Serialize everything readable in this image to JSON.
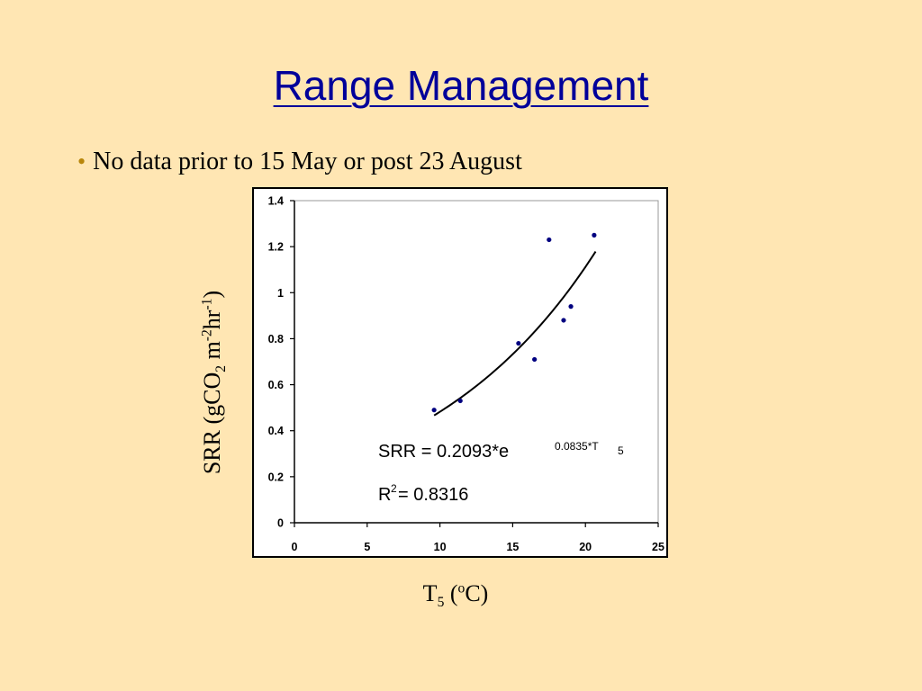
{
  "colors": {
    "background": "#FFE6B3",
    "title": "#00009A",
    "bullet": "#B8860B",
    "point": "#000080",
    "curve": "#000000"
  },
  "slide": {
    "title": "Range Management",
    "bullets": [
      {
        "icon": "bullet-dot-icon",
        "text": "No data prior to 15 May or post 23 August"
      }
    ]
  },
  "chart_data": {
    "type": "scatter",
    "ylabel": {
      "main": "SRR (gCO",
      "sub": "2",
      "mid": " m",
      "sup1": "-2",
      "mid2": "hr",
      "sup2": "-1",
      "end": ")"
    },
    "xlabel": {
      "main": "T",
      "sub": "5",
      "mid": " (",
      "sup": "o",
      "end": "C)"
    },
    "xlim": [
      0,
      25
    ],
    "ylim": [
      0,
      1.4
    ],
    "xticks": [
      "0",
      "5",
      "10",
      "15",
      "20",
      "25"
    ],
    "yticks": [
      "0",
      "0.2",
      "0.4",
      "0.6",
      "0.8",
      "1",
      "1.2",
      "1.4"
    ],
    "grid": false,
    "points": [
      {
        "x": 9.6,
        "y": 0.49
      },
      {
        "x": 11.4,
        "y": 0.53
      },
      {
        "x": 15.4,
        "y": 0.78
      },
      {
        "x": 16.5,
        "y": 0.71
      },
      {
        "x": 17.5,
        "y": 1.23
      },
      {
        "x": 18.5,
        "y": 0.88
      },
      {
        "x": 19.0,
        "y": 0.94
      },
      {
        "x": 20.6,
        "y": 1.25
      }
    ],
    "fit": {
      "a": 0.2093,
      "b": 0.0835,
      "x_start": 9.6,
      "x_end": 20.7
    },
    "equation": {
      "prefix": "SRR = 0.2093*e",
      "exponent": "0.0835*T",
      "exponent_sub": "5"
    },
    "r_squared": {
      "prefix": "R",
      "sup": "2",
      "value": " = 0.8316"
    }
  }
}
